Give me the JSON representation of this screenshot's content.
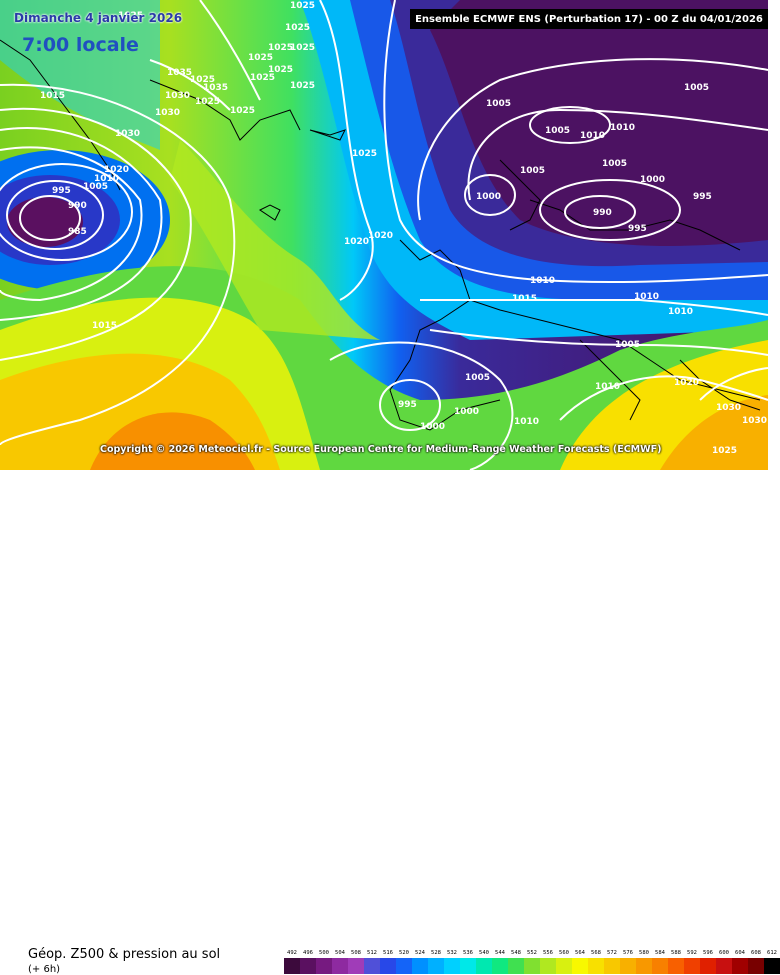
{
  "map": {
    "date_label": "Dimanche 4 janvier 2026",
    "time_label": "7:00 locale",
    "header": "Ensemble ECMWF ENS  (Perturbation 17)  - 00 Z du 04/01/2026",
    "copyright": "Copyright © 2026 Meteociel.fr - Source European Centre for Medium-Range Weather Forecasts (ECMWF)",
    "parameter": "Géop. Z500 & pression au sol",
    "step": "(+ 6h)",
    "isobar_labels": [
      "1025",
      "1025",
      "1025",
      "1025",
      "1025",
      "1025",
      "1025",
      "1025",
      "1025",
      "1025",
      "1025",
      "1015",
      "1035",
      "1035",
      "1030",
      "1030",
      "1030",
      "1025",
      "1020",
      "1010",
      "1005",
      "995",
      "990",
      "985",
      "1025",
      "1020",
      "1020",
      "1015",
      "1005",
      "1005",
      "1010",
      "1010",
      "1005",
      "1005",
      "1005",
      "1000",
      "990",
      "995",
      "995",
      "1000",
      "1010",
      "1015",
      "1010",
      "1010",
      "1005",
      "1005",
      "1010",
      "1020",
      "1030",
      "1030",
      "1025",
      "995",
      "1000",
      "1000",
      "1010"
    ],
    "scale": {
      "ticks": [
        "492",
        "496",
        "500",
        "504",
        "508",
        "512",
        "516",
        "520",
        "524",
        "528",
        "532",
        "536",
        "540",
        "544",
        "548",
        "552",
        "556",
        "560",
        "564",
        "568",
        "572",
        "576",
        "580",
        "584",
        "588",
        "592",
        "596",
        "600",
        "604",
        "608",
        "612"
      ],
      "colors": [
        "#3c0a3c",
        "#5a1060",
        "#761a80",
        "#8e2aa0",
        "#a03cb8",
        "#5050d8",
        "#2848e8",
        "#1464f8",
        "#0090ff",
        "#00b0ff",
        "#00d0ff",
        "#00e8e8",
        "#00e8b0",
        "#10e880",
        "#40e050",
        "#80e030",
        "#b0e820",
        "#d8f010",
        "#f8f800",
        "#f8e000",
        "#f8c800",
        "#f8b000",
        "#f89800",
        "#f88000",
        "#f86000",
        "#f04000",
        "#e02000",
        "#c81010",
        "#a00000",
        "#780000",
        "#000000"
      ]
    }
  }
}
